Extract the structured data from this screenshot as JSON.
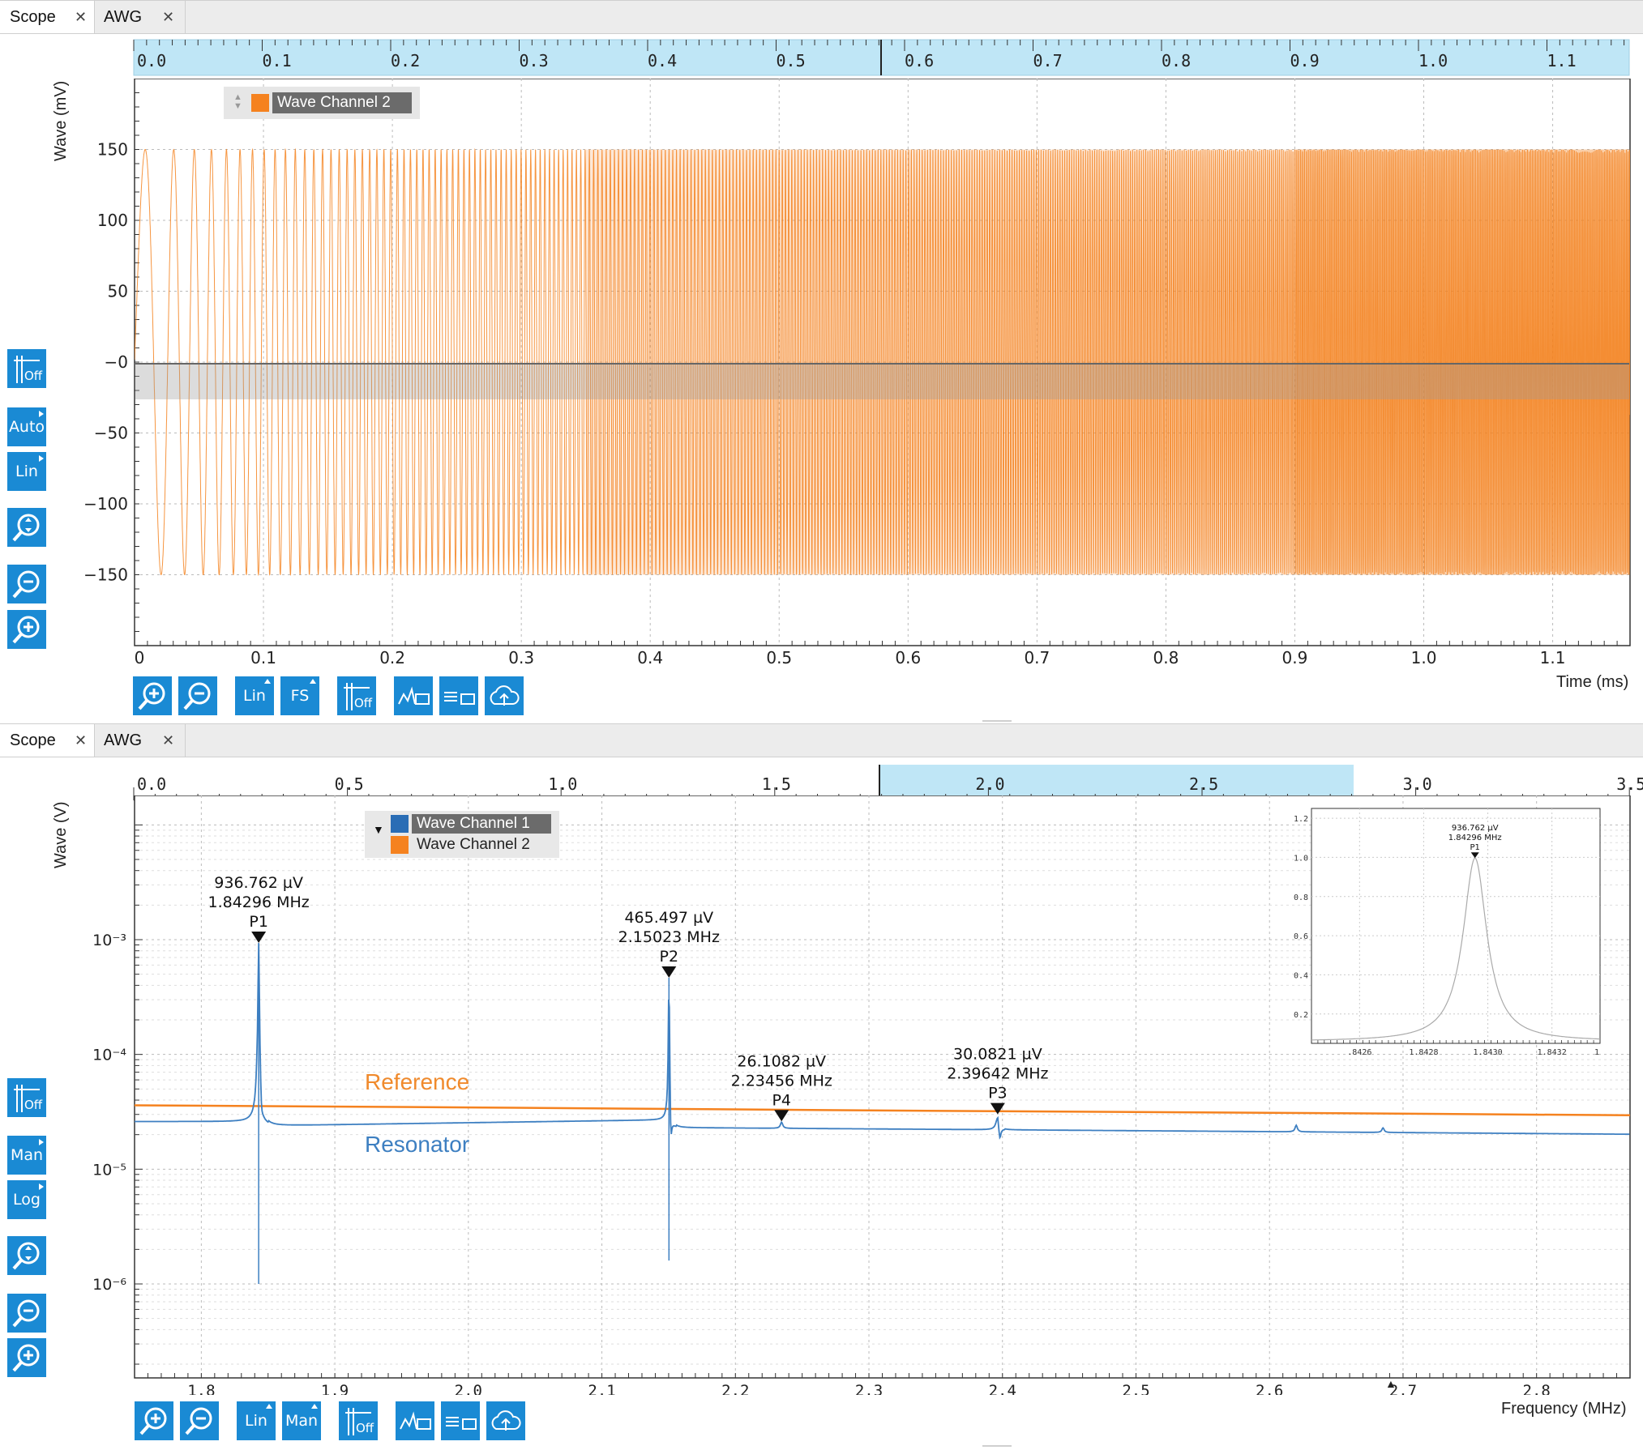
{
  "top_panel": {
    "tabs": [
      {
        "label": "Scope",
        "active": true
      },
      {
        "label": "AWG",
        "active": false
      }
    ],
    "overview_ticks": [
      "0.0",
      "0.1",
      "0.2",
      "0.3",
      "0.4",
      "0.5",
      "0.6",
      "0.7",
      "0.8",
      "0.9",
      "1.0",
      "1.1"
    ],
    "y_axis_label": "Wave (mV)",
    "x_axis_label": "Time (ms)",
    "legend": [
      {
        "name": "Wave Channel 2",
        "color": "#f5821f"
      }
    ],
    "left_buttons": [
      "Off",
      "Auto",
      "Lin"
    ],
    "bottom_buttons": [
      "Lin",
      "FS",
      "Off"
    ]
  },
  "bottom_panel": {
    "tabs": [
      {
        "label": "Scope",
        "active": true
      },
      {
        "label": "AWG",
        "active": false
      }
    ],
    "overview_ticks": [
      "0.0",
      "0.5",
      "1.0",
      "1.5",
      "2.0",
      "2.5",
      "3.0",
      "3.5"
    ],
    "y_axis_label": "Wave (V)",
    "x_axis_label": "Frequency (MHz)",
    "legend": [
      {
        "name": "Wave Channel 1",
        "color": "#1f77b4"
      },
      {
        "name": "Wave Channel 2",
        "color": "#f5821f"
      }
    ],
    "trace_labels": {
      "reference": "Reference",
      "resonator": "Resonator"
    },
    "left_buttons": [
      "Off",
      "Man",
      "Log"
    ],
    "bottom_buttons": [
      "Lin",
      "Man",
      "Off"
    ],
    "markers": [
      {
        "id": "P1",
        "value": "936.762 µV",
        "freq": "1.84296 MHz"
      },
      {
        "id": "P2",
        "value": "465.497 µV",
        "freq": "2.15023 MHz"
      },
      {
        "id": "P4",
        "value": "26.1082 µV",
        "freq": "2.23456 MHz"
      },
      {
        "id": "P3",
        "value": "30.0821 µV",
        "freq": "2.39642 MHz"
      }
    ],
    "inset": {
      "marker": {
        "id": "P1",
        "value": "936.762 µV",
        "freq": "1.84296 MHz"
      },
      "y_ticks": [
        "1.2",
        "1.0",
        "0.8",
        "0.6",
        "0.4",
        "0.2"
      ],
      "x_ticks": [
        ".8426",
        "1.8428",
        "1.8430",
        "1.8432",
        "1"
      ]
    }
  },
  "chart_data": [
    {
      "type": "line",
      "title": "",
      "xlabel": "Time (ms)",
      "ylabel": "Wave (mV)",
      "xlim": [
        0,
        1.16
      ],
      "ylim": [
        -200,
        200
      ],
      "x_ticks": [
        "0",
        "0.1",
        "0.2",
        "0.3",
        "0.4",
        "0.5",
        "0.6",
        "0.7",
        "0.8",
        "0.9",
        "1.0",
        "1.1"
      ],
      "y_ticks": [
        "150",
        "100",
        "50",
        "−0",
        "−50",
        "−100",
        "−150"
      ],
      "grid": true,
      "legend": "top-left",
      "series": [
        {
          "name": "Wave Channel 2",
          "color": "#f5821f",
          "description_amplitude_mV": 150,
          "start_period_ms": 0.04,
          "end_period_ms": 0.0012
        }
      ]
    },
    {
      "type": "line",
      "title": "",
      "xlabel": "Frequency (MHz)",
      "ylabel": "Wave (V)",
      "xlim": [
        1.75,
        2.87
      ],
      "y_scale": "log",
      "y_ticks": [
        "10⁻³",
        "10⁻⁴",
        "10⁻⁵",
        "10⁻⁶"
      ],
      "x_ticks": [
        "1.8",
        "1.9",
        "2.0",
        "2.1",
        "2.2",
        "2.3",
        "2.4",
        "2.5",
        "2.6",
        "2.7",
        "2.8"
      ],
      "grid": true,
      "legend": "top-left",
      "series": [
        {
          "name": "Wave Channel 2",
          "color": "#f5821f",
          "x": [
            1.75,
            2.0,
            2.3,
            2.6,
            2.87
          ],
          "y": [
            3.6e-05,
            3.45e-05,
            3.25e-05,
            3.1e-05,
            2.95e-05
          ]
        },
        {
          "name": "Wave Channel 1",
          "color": "#3d7fc1",
          "x": [
            1.75,
            1.84,
            1.84296,
            1.846,
            1.9,
            2.14,
            2.15023,
            2.152,
            2.2,
            2.23456,
            2.3,
            2.39642,
            2.4,
            2.6,
            2.87
          ],
          "y": [
            2.6e-05,
            2.8e-05,
            0.000936762,
            1e-06,
            2.4e-05,
            2.7e-05,
            0.000465497,
            2e-06,
            2.35e-05,
            2.61082e-05,
            2.3e-05,
            3.00821e-05,
            1.8e-05,
            2.1e-05,
            1.9e-05
          ]
        }
      ]
    }
  ]
}
